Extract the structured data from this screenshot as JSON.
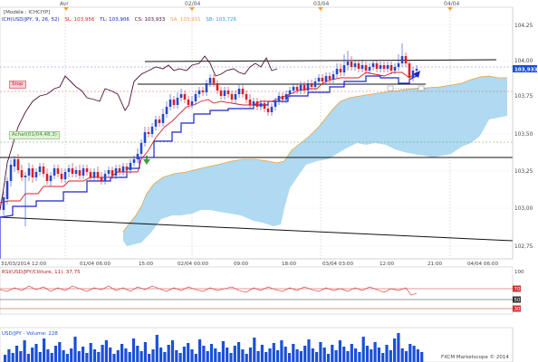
{
  "top_axis": {
    "labels": [
      "Avr",
      "02/04",
      "03/04",
      "04/04"
    ]
  },
  "header": {
    "model_label": "[Modèle : ICHCIYP]",
    "ich_label": "ICH(USD/JPY, 9, 26, 52)",
    "sl_label": "SL: 103,956",
    "tl_label": "TL: 103,906",
    "cs_label": "CS: 103,933",
    "sa_label": "SA: 103,931",
    "sb_label": "SB: 103,726"
  },
  "markers": {
    "stop_label": "Stop",
    "buy_label": "Achat(01/04,48,3)",
    "current_price": "103,933"
  },
  "price_axis": {
    "ticks": [
      "104,25",
      "104,00",
      "103,75",
      "103,50",
      "103,25",
      "103,00",
      "102,75"
    ]
  },
  "time_axis": {
    "ticks": [
      "31/03/2014 12:00",
      "01/04 06:00",
      "15:00",
      "02/04 00:00",
      "09:00",
      "18:00",
      "03/04 03:00",
      "12:00",
      "21:00",
      "04/04 06:00"
    ]
  },
  "rsi_panel": {
    "label": "RSI(USD/JPY/Clôture, 11): 37,75",
    "ticks": [
      "100",
      "70",
      "50",
      "30"
    ]
  },
  "volume_panel": {
    "label": "USD/JPY - Volume: 228",
    "footer": "FXCM Marketscope © 2014"
  },
  "colors": {
    "up_candle": "#2748c8",
    "down_candle": "#d8202a",
    "kijun": "#1a25c8",
    "tenkan": "#d8202a",
    "chikou": "#4a1038",
    "cloud": "#a6d6ef",
    "senkou_a": "#f0a040",
    "volume": "#1a4fd8",
    "rsi": "#d03030",
    "price_box": "#1a4fd8"
  }
}
